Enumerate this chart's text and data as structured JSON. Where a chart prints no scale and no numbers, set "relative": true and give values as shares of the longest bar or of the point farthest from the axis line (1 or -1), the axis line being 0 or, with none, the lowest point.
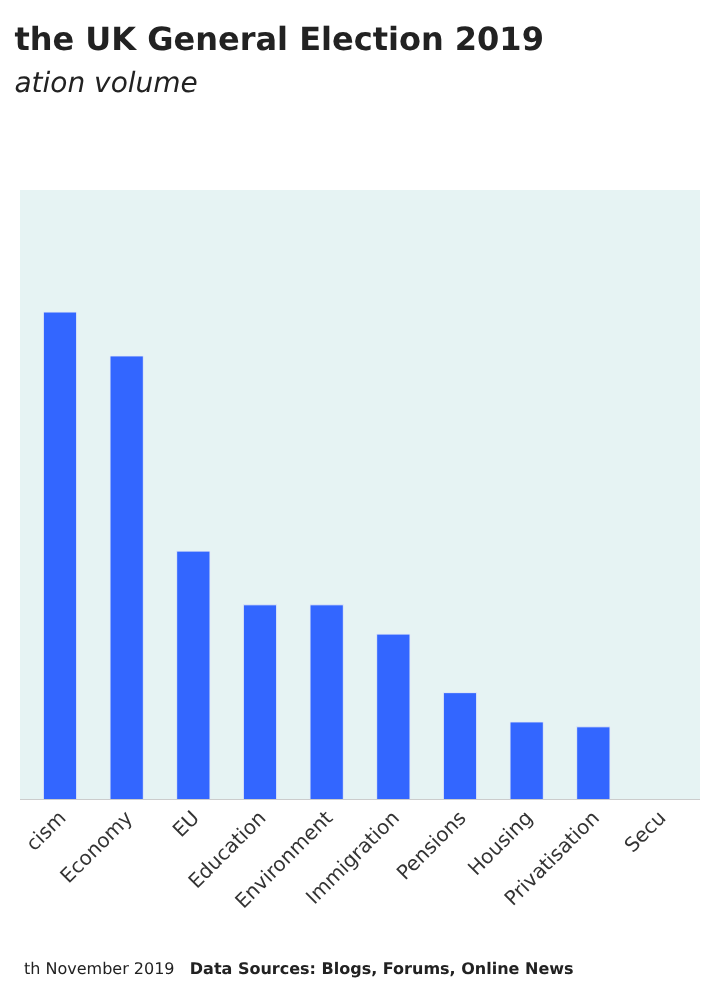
{
  "chart_data": {
    "type": "bar",
    "title": "the UK General Election 2019",
    "subtitle": "ation volume",
    "categories": [
      "cism",
      "Economy",
      "EU",
      "Education",
      "Environment",
      "Immigration",
      "Pensions",
      "Housing",
      "Privatisation",
      "Secu"
    ],
    "values": [
      1,
      0.91,
      0.51,
      0.4,
      0.4,
      0.34,
      0.22,
      0.16,
      0.15,
      null
    ],
    "color": "#3366ff",
    "relative": true,
    "legend": false,
    "annotations": [
      "th November 2019",
      "Data Sources: Blogs, Forums, Online News"
    ]
  }
}
